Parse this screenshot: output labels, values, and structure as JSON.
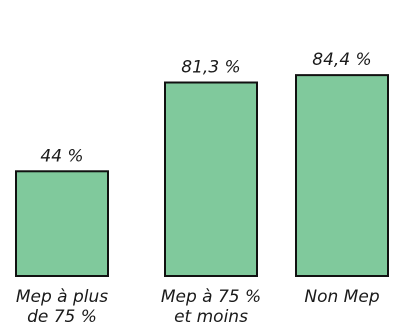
{
  "chart_data": {
    "type": "bar",
    "categories": [
      [
        "Mep à plus",
        "de 75 %"
      ],
      [
        "Mep à 75 %",
        "et moins"
      ],
      [
        "Non Mep"
      ]
    ],
    "values": [
      44,
      81.3,
      84.4
    ],
    "value_labels": [
      "44 %",
      "81,3 %",
      "84,4 %"
    ],
    "ylim": [
      0,
      100
    ],
    "grid": false,
    "bar_color": "#80c99c",
    "bar_edge_color": "#111111"
  }
}
